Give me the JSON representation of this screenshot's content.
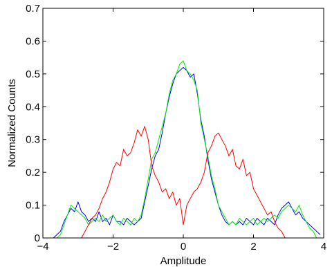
{
  "chart_data": {
    "type": "line",
    "title": "",
    "xlabel": "Amplitude",
    "ylabel": "Normalized Counts",
    "xlim": [
      -4,
      4
    ],
    "ylim": [
      0,
      0.7
    ],
    "xticks": [
      -4,
      -2,
      0,
      2,
      4
    ],
    "yticks": [
      0,
      0.1,
      0.2,
      0.3,
      0.4,
      0.5,
      0.6,
      0.7
    ],
    "xtick_labels": [
      "−4",
      "−2",
      "0",
      "2",
      "4"
    ],
    "ytick_labels": [
      "0",
      "0.1",
      "0.2",
      "0.3",
      "0.4",
      "0.5",
      "0.6",
      "0.7"
    ],
    "grid": false,
    "legend": "none",
    "series": [
      {
        "color": "#0000ff",
        "x": [
          -3.7,
          -3.5,
          -3.4,
          -3.3,
          -3.2,
          -3.1,
          -3.0,
          -2.9,
          -2.8,
          -2.7,
          -2.6,
          -2.5,
          -2.4,
          -2.3,
          -2.2,
          -2.1,
          -2.0,
          -1.9,
          -1.8,
          -1.7,
          -1.6,
          -1.5,
          -1.4,
          -1.3,
          -1.2,
          -1.1,
          -1.0,
          -0.9,
          -0.8,
          -0.7,
          -0.6,
          -0.5,
          -0.4,
          -0.3,
          -0.2,
          -0.1,
          0.0,
          0.1,
          0.2,
          0.3,
          0.4,
          0.5,
          0.6,
          0.7,
          0.8,
          0.9,
          1.0,
          1.1,
          1.2,
          1.3,
          1.4,
          1.5,
          1.6,
          1.7,
          1.8,
          1.9,
          2.0,
          2.1,
          2.2,
          2.3,
          2.4,
          2.5,
          2.6,
          2.7,
          2.8,
          2.9,
          3.0,
          3.1,
          3.2,
          3.3,
          3.4,
          3.5,
          3.6,
          3.7,
          3.8,
          3.9
        ],
        "values": [
          0.0,
          0.02,
          0.05,
          0.07,
          0.09,
          0.08,
          0.11,
          0.08,
          0.07,
          0.05,
          0.06,
          0.05,
          0.08,
          0.05,
          0.06,
          0.04,
          0.07,
          0.05,
          0.05,
          0.04,
          0.06,
          0.05,
          0.04,
          0.05,
          0.06,
          0.11,
          0.16,
          0.21,
          0.25,
          0.27,
          0.32,
          0.38,
          0.43,
          0.47,
          0.5,
          0.51,
          0.52,
          0.51,
          0.49,
          0.5,
          0.44,
          0.36,
          0.31,
          0.24,
          0.18,
          0.14,
          0.1,
          0.07,
          0.05,
          0.04,
          0.05,
          0.04,
          0.05,
          0.04,
          0.06,
          0.05,
          0.04,
          0.06,
          0.05,
          0.04,
          0.06,
          0.05,
          0.04,
          0.07,
          0.09,
          0.1,
          0.11,
          0.09,
          0.07,
          0.08,
          0.06,
          0.05,
          0.04,
          0.03,
          0.02,
          0.01
        ]
      },
      {
        "color": "#00ee00",
        "x": [
          -3.6,
          -3.5,
          -3.4,
          -3.3,
          -3.2,
          -3.1,
          -3.0,
          -2.9,
          -2.8,
          -2.7,
          -2.6,
          -2.5,
          -2.4,
          -2.3,
          -2.2,
          -2.1,
          -2.0,
          -1.9,
          -1.8,
          -1.7,
          -1.6,
          -1.5,
          -1.4,
          -1.3,
          -1.2,
          -1.1,
          -1.0,
          -0.9,
          -0.8,
          -0.7,
          -0.6,
          -0.5,
          -0.4,
          -0.3,
          -0.2,
          -0.1,
          0.0,
          0.1,
          0.2,
          0.3,
          0.4,
          0.5,
          0.6,
          0.7,
          0.8,
          0.9,
          1.0,
          1.1,
          1.2,
          1.3,
          1.4,
          1.5,
          1.6,
          1.7,
          1.8,
          1.9,
          2.0,
          2.1,
          2.2,
          2.3,
          2.4,
          2.5,
          2.6,
          2.7,
          2.8,
          2.9,
          3.0,
          3.1,
          3.2,
          3.3,
          3.4,
          3.5,
          3.6,
          3.7,
          3.8
        ],
        "values": [
          0.0,
          0.01,
          0.04,
          0.07,
          0.1,
          0.09,
          0.08,
          0.07,
          0.06,
          0.04,
          0.05,
          0.06,
          0.05,
          0.07,
          0.05,
          0.06,
          0.07,
          0.05,
          0.04,
          0.06,
          0.05,
          0.04,
          0.06,
          0.05,
          0.07,
          0.12,
          0.18,
          0.24,
          0.26,
          0.3,
          0.34,
          0.38,
          0.44,
          0.48,
          0.5,
          0.53,
          0.54,
          0.51,
          0.5,
          0.48,
          0.45,
          0.35,
          0.3,
          0.25,
          0.19,
          0.15,
          0.1,
          0.08,
          0.06,
          0.04,
          0.05,
          0.04,
          0.06,
          0.05,
          0.04,
          0.05,
          0.06,
          0.04,
          0.05,
          0.06,
          0.05,
          0.06,
          0.07,
          0.06,
          0.08,
          0.09,
          0.1,
          0.09,
          0.08,
          0.1,
          0.07,
          0.05,
          0.03,
          0.02,
          0.0
        ]
      },
      {
        "color": "#ff0000",
        "x": [
          -2.9,
          -2.8,
          -2.7,
          -2.6,
          -2.5,
          -2.4,
          -2.3,
          -2.2,
          -2.1,
          -2.0,
          -1.9,
          -1.8,
          -1.7,
          -1.6,
          -1.5,
          -1.4,
          -1.3,
          -1.2,
          -1.1,
          -1.0,
          -0.9,
          -0.8,
          -0.7,
          -0.6,
          -0.5,
          -0.4,
          -0.3,
          -0.2,
          -0.1,
          0.0,
          0.1,
          0.2,
          0.3,
          0.4,
          0.5,
          0.6,
          0.7,
          0.8,
          0.9,
          1.0,
          1.1,
          1.2,
          1.3,
          1.4,
          1.5,
          1.6,
          1.7,
          1.8,
          1.9,
          2.0,
          2.1,
          2.2,
          2.3,
          2.4,
          2.5,
          2.6,
          2.7,
          2.8,
          2.9
        ],
        "values": [
          0.0,
          0.02,
          0.04,
          0.06,
          0.07,
          0.09,
          0.12,
          0.14,
          0.17,
          0.21,
          0.23,
          0.22,
          0.27,
          0.25,
          0.26,
          0.29,
          0.33,
          0.31,
          0.34,
          0.3,
          0.22,
          0.19,
          0.17,
          0.14,
          0.15,
          0.12,
          0.14,
          0.1,
          0.12,
          0.04,
          0.1,
          0.12,
          0.14,
          0.15,
          0.17,
          0.2,
          0.26,
          0.28,
          0.31,
          0.32,
          0.3,
          0.28,
          0.25,
          0.27,
          0.22,
          0.21,
          0.24,
          0.19,
          0.2,
          0.15,
          0.13,
          0.11,
          0.09,
          0.07,
          0.08,
          0.05,
          0.03,
          0.02,
          0.0
        ]
      }
    ]
  }
}
